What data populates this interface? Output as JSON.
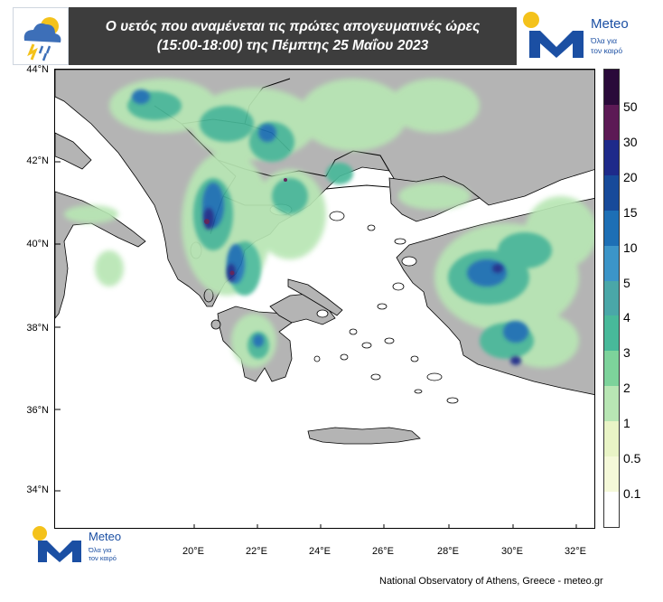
{
  "header": {
    "title_line1": "Ο υετός που αναμένεται τις πρώτες απογευματινές ώρες",
    "title_line2": "(15:00-18:00) της Πέμπτης 25 Μαΐου 2023",
    "weather_icon": "rain-cloud-sun-icon",
    "brand_name": "Meteo",
    "brand_tagline_line1": "Όλα για",
    "brand_tagline_line2": "τον καιρό"
  },
  "watermark": {
    "brand_name": "Meteo",
    "tagline_line1": "Όλα για",
    "tagline_line2": "τον καιρό"
  },
  "map": {
    "lat_labels": [
      "44°N",
      "42°N",
      "40°N",
      "38°N",
      "36°N",
      "34°N"
    ],
    "lon_labels": [
      "20°E",
      "22°E",
      "24°E",
      "26°E",
      "28°E",
      "30°E",
      "32°E"
    ],
    "colors": {
      "sea": "#ffffff",
      "land": "#b4b4b4",
      "border": "#000000"
    }
  },
  "legend": {
    "labels": [
      "50",
      "30",
      "20",
      "15",
      "10",
      "5",
      "4",
      "3",
      "2",
      "1",
      "0.5",
      "0.1"
    ],
    "colors": [
      "#2a0a3a",
      "#5c1a55",
      "#1e2a8a",
      "#174a9a",
      "#1d6fb5",
      "#3c95c8",
      "#4aa7a8",
      "#48b99a",
      "#7dd39b",
      "#b8e6b4",
      "#e9f4c6",
      "#f5f9d9",
      "#ffffff"
    ]
  },
  "credit": "National Observatory of Athens, Greece - meteo.gr"
}
